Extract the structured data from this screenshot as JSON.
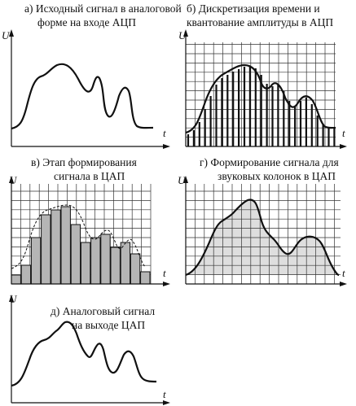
{
  "panels": {
    "a": {
      "caption": [
        "а) Исходный сигнал в аналоговой",
        "форме на входе АЦП"
      ],
      "y_label": "U",
      "x_label": "t"
    },
    "b": {
      "caption": [
        "б) Дискретизация времени и",
        "квантование амплитуды в АЦП"
      ],
      "y_label": "U",
      "x_label": "t"
    },
    "c": {
      "caption": [
        "в) Этап формирования",
        "сигнала в ЦАП"
      ],
      "y_label": "U",
      "x_label": "t"
    },
    "d": {
      "caption": [
        "г) Формирование сигнала для",
        "звуковых колонок в ЦАП"
      ],
      "y_label": "U",
      "x_label": "t"
    },
    "e": {
      "caption": [
        "д) Аналоговый сигнал",
        "на выходе ЦАП"
      ],
      "y_label": "U",
      "x_label": "t"
    }
  },
  "colors": {
    "line": "#111111",
    "grid": "#333333",
    "bar_fill": "#b5b5b5",
    "area_fill": "#dedede"
  }
}
